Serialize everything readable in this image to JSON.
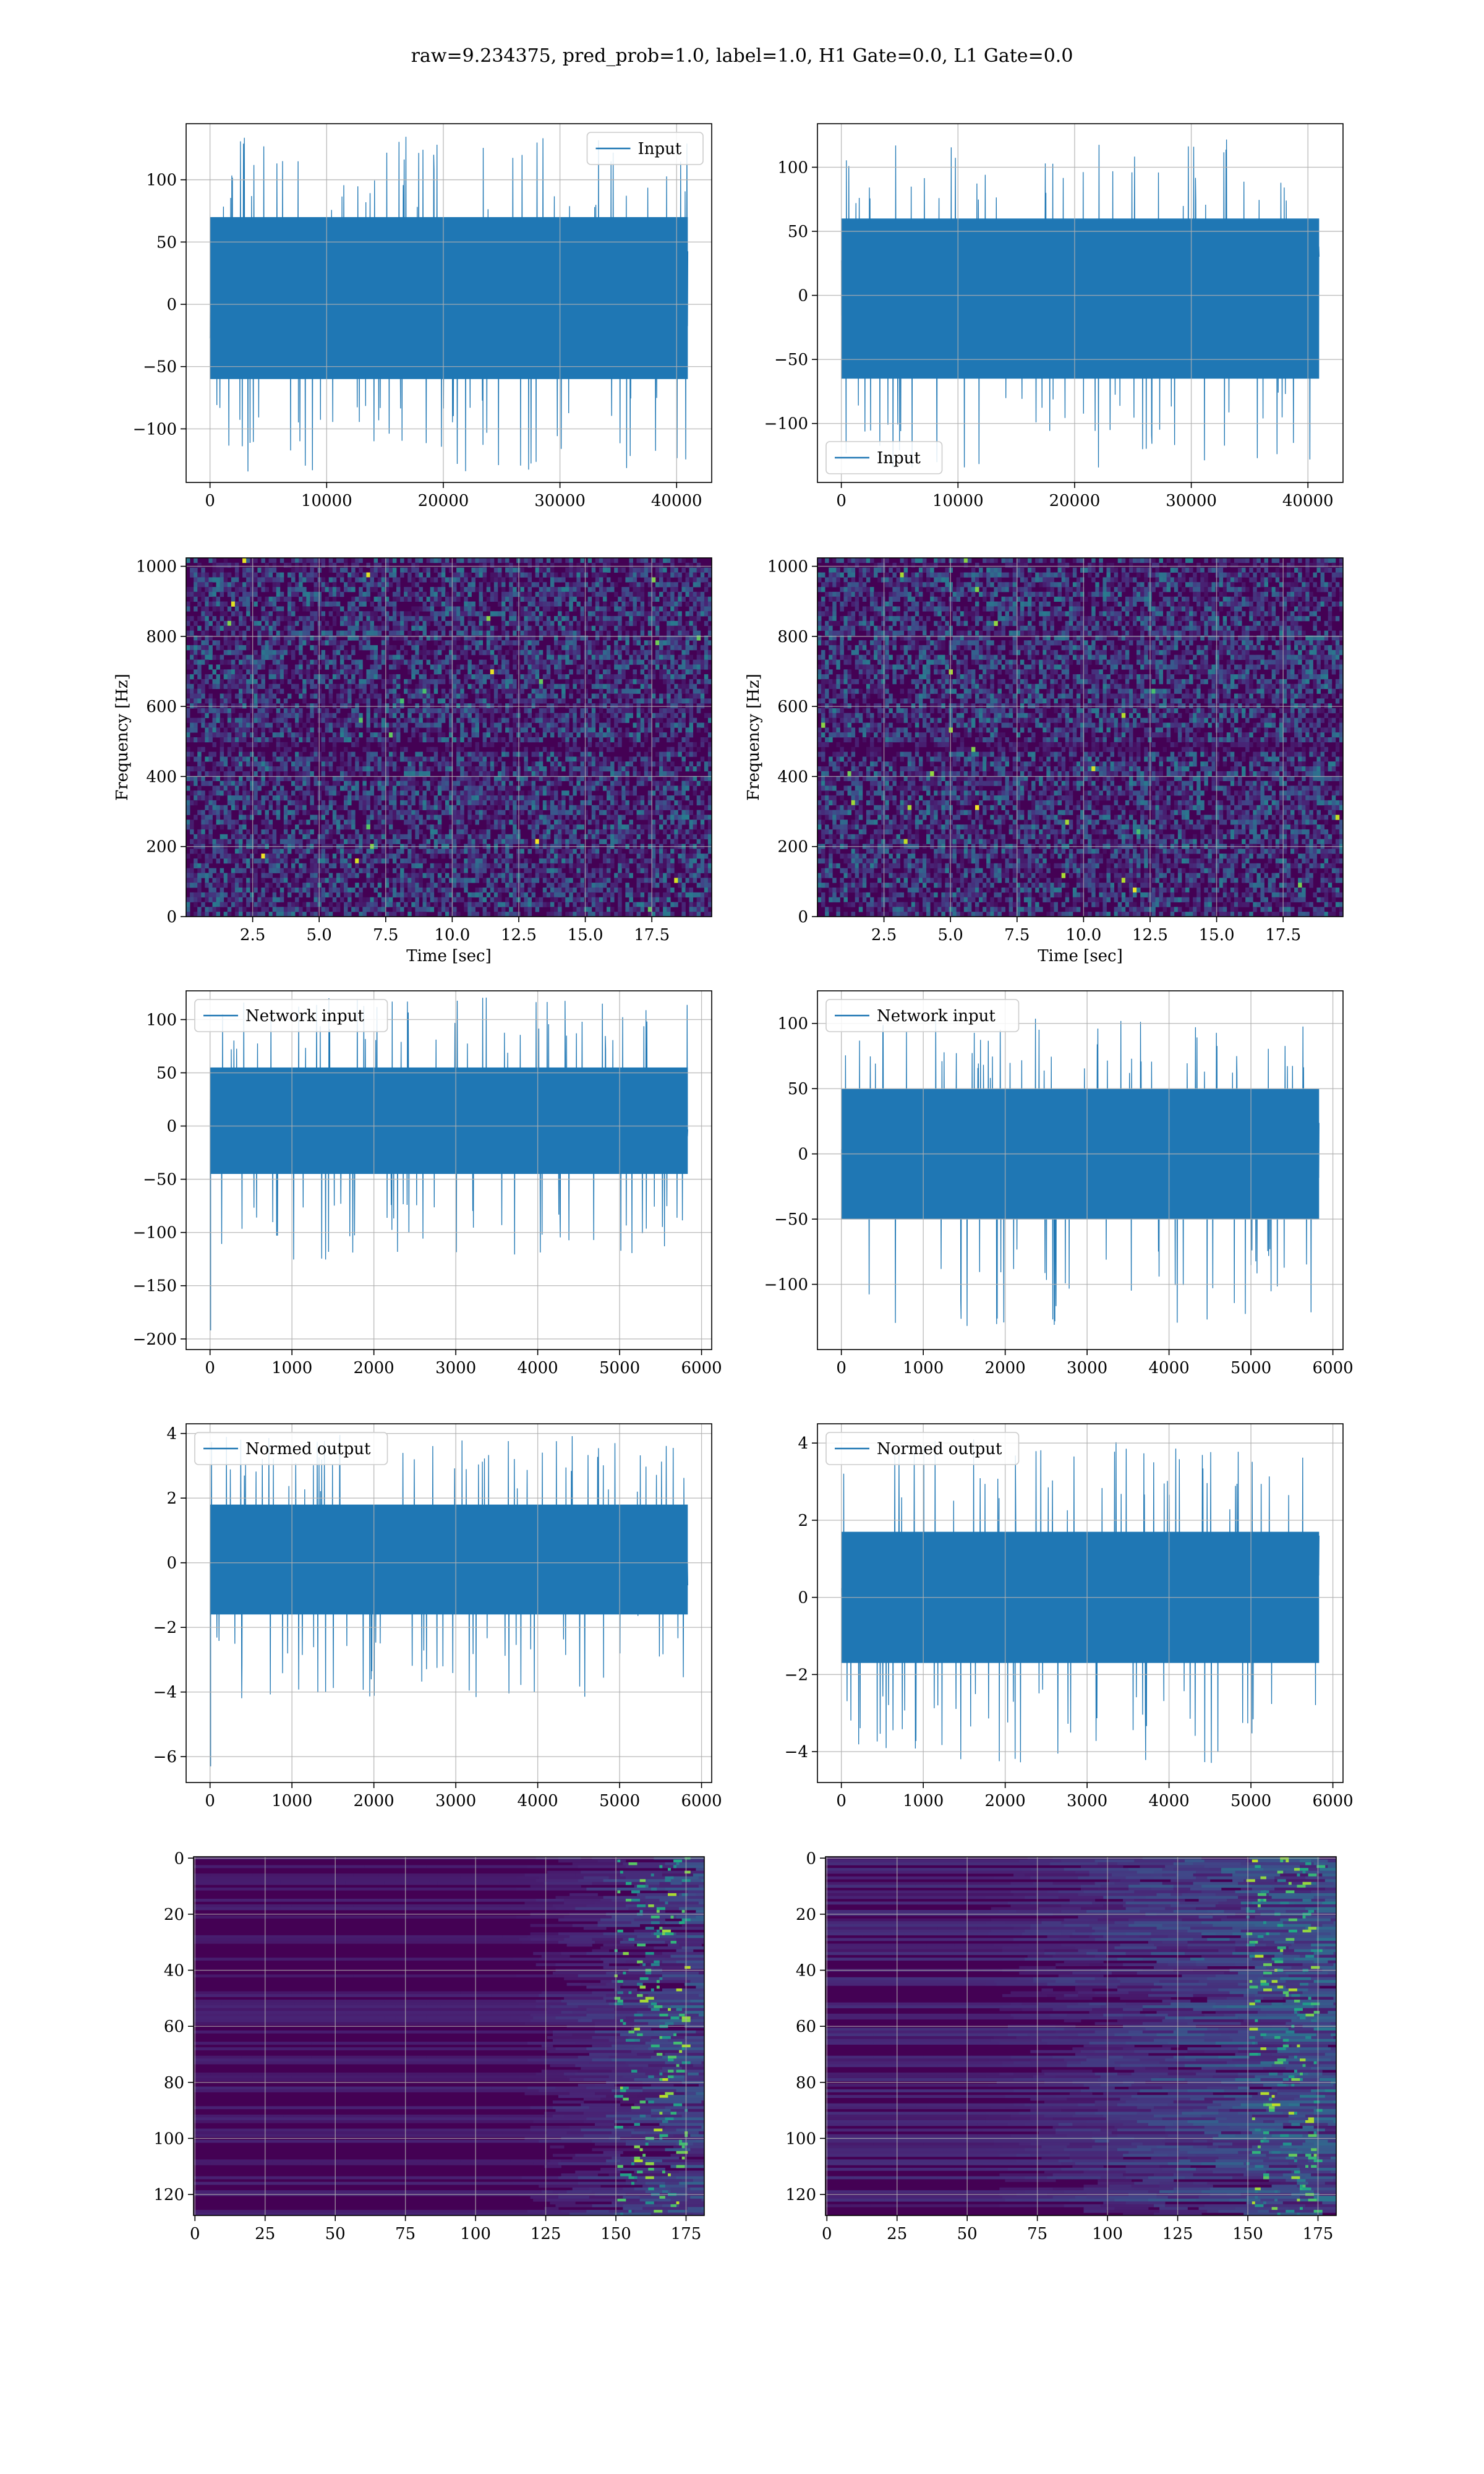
{
  "suptitle": "raw=9.234375, pred_prob=1.0, label=1.0, H1 Gate=0.0, L1 Gate=0.0",
  "colors": {
    "line": "#1f77b4",
    "grid": "#b0b0b0",
    "viridis_low": "#440154",
    "viridis_high": "#fde725"
  },
  "chart_data": [
    {
      "id": "h1-input",
      "type": "line",
      "series": [
        {
          "name": "Input"
        }
      ],
      "legend": "upper right",
      "x_range": [
        0,
        40960
      ],
      "xlim": [
        -2048,
        43008
      ],
      "ylim": [
        -143,
        145
      ],
      "y_envelope": [
        -135,
        137
      ],
      "y_bulk": [
        -60,
        70
      ],
      "xticks": [
        0,
        10000,
        20000,
        30000,
        40000
      ],
      "xtick_labels": [
        "0",
        "10000",
        "20000",
        "30000",
        "40000"
      ],
      "yticks": [
        -100,
        -50,
        0,
        50,
        100
      ],
      "ytick_labels": [
        "−100",
        "−50",
        "0",
        "50",
        "100"
      ],
      "xlabel": "",
      "ylabel": "",
      "grid": true
    },
    {
      "id": "l1-input",
      "type": "line",
      "series": [
        {
          "name": "Input"
        }
      ],
      "legend": "lower left",
      "x_range": [
        0,
        40960
      ],
      "xlim": [
        -2048,
        43008
      ],
      "ylim": [
        -146,
        134
      ],
      "y_envelope": [
        -135,
        122
      ],
      "y_bulk": [
        -65,
        60
      ],
      "xticks": [
        0,
        10000,
        20000,
        30000,
        40000
      ],
      "xtick_labels": [
        "0",
        "10000",
        "20000",
        "30000",
        "40000"
      ],
      "yticks": [
        -100,
        -50,
        0,
        50,
        100
      ],
      "ytick_labels": [
        "−100",
        "−50",
        "0",
        "50",
        "100"
      ],
      "xlabel": "",
      "ylabel": "",
      "grid": true
    },
    {
      "id": "h1-spectrogram",
      "type": "heatmap",
      "colormap": "viridis",
      "xlim": [
        0,
        19.75
      ],
      "ylim": [
        0,
        1024
      ],
      "xticks": [
        2.5,
        5.0,
        7.5,
        10.0,
        12.5,
        15.0,
        17.5
      ],
      "xtick_labels": [
        "2.5",
        "5.0",
        "7.5",
        "10.0",
        "12.5",
        "15.0",
        "17.5"
      ],
      "yticks": [
        0,
        200,
        400,
        600,
        800,
        1000
      ],
      "ytick_labels": [
        "0",
        "200",
        "400",
        "600",
        "800",
        "1000"
      ],
      "xlabel": "Time [sec]",
      "ylabel": "Frequency [Hz]",
      "grid": true
    },
    {
      "id": "l1-spectrogram",
      "type": "heatmap",
      "colormap": "viridis",
      "xlim": [
        0,
        19.75
      ],
      "ylim": [
        0,
        1024
      ],
      "xticks": [
        2.5,
        5.0,
        7.5,
        10.0,
        12.5,
        15.0,
        17.5
      ],
      "xtick_labels": [
        "2.5",
        "5.0",
        "7.5",
        "10.0",
        "12.5",
        "15.0",
        "17.5"
      ],
      "yticks": [
        0,
        200,
        400,
        600,
        800,
        1000
      ],
      "ytick_labels": [
        "0",
        "200",
        "400",
        "600",
        "800",
        "1000"
      ],
      "xlabel": "Time [sec]",
      "ylabel": "Frequency [Hz]",
      "grid": true
    },
    {
      "id": "h1-network-input",
      "type": "line",
      "series": [
        {
          "name": "Network input"
        }
      ],
      "legend": "upper left",
      "x_range": [
        0,
        5832
      ],
      "xlim": [
        -292,
        6124
      ],
      "ylim": [
        -210,
        127
      ],
      "y_envelope": [
        -130,
        122
      ],
      "y_bulk": [
        -45,
        55
      ],
      "spike": [
        5,
        -192
      ],
      "xticks": [
        0,
        1000,
        2000,
        3000,
        4000,
        5000,
        6000
      ],
      "xtick_labels": [
        "0",
        "1000",
        "2000",
        "3000",
        "4000",
        "5000",
        "6000"
      ],
      "yticks": [
        -200,
        -150,
        -100,
        -50,
        0,
        50,
        100
      ],
      "ytick_labels": [
        "−200",
        "−150",
        "−100",
        "−50",
        "0",
        "50",
        "100"
      ],
      "xlabel": "",
      "ylabel": "",
      "grid": true
    },
    {
      "id": "l1-network-input",
      "type": "line",
      "series": [
        {
          "name": "Network input"
        }
      ],
      "legend": "upper left",
      "x_range": [
        0,
        5832
      ],
      "xlim": [
        -292,
        6124
      ],
      "ylim": [
        -150,
        125
      ],
      "y_envelope": [
        -132,
        105
      ],
      "y_bulk": [
        -50,
        50
      ],
      "xticks": [
        0,
        1000,
        2000,
        3000,
        4000,
        5000,
        6000
      ],
      "xtick_labels": [
        "0",
        "1000",
        "2000",
        "3000",
        "4000",
        "5000",
        "6000"
      ],
      "yticks": [
        -100,
        -50,
        0,
        50,
        100
      ],
      "ytick_labels": [
        "−100",
        "−50",
        "0",
        "50",
        "100"
      ],
      "xlabel": "",
      "ylabel": "",
      "grid": true
    },
    {
      "id": "h1-normed-output",
      "type": "line",
      "series": [
        {
          "name": "Normed output"
        }
      ],
      "legend": "upper left",
      "x_range": [
        0,
        5832
      ],
      "xlim": [
        -292,
        6124
      ],
      "ylim": [
        -6.8,
        4.3
      ],
      "y_envelope": [
        -4.2,
        4.0
      ],
      "y_bulk": [
        -1.6,
        1.8
      ],
      "spike": [
        5,
        -6.3
      ],
      "xticks": [
        0,
        1000,
        2000,
        3000,
        4000,
        5000,
        6000
      ],
      "xtick_labels": [
        "0",
        "1000",
        "2000",
        "3000",
        "4000",
        "5000",
        "6000"
      ],
      "yticks": [
        -6,
        -4,
        -2,
        0,
        2,
        4
      ],
      "ytick_labels": [
        "−6",
        "−4",
        "−2",
        "0",
        "2",
        "4"
      ],
      "xlabel": "",
      "ylabel": "",
      "grid": true
    },
    {
      "id": "l1-normed-output",
      "type": "line",
      "series": [
        {
          "name": "Normed output"
        }
      ],
      "legend": "upper left",
      "x_range": [
        0,
        5832
      ],
      "xlim": [
        -292,
        6124
      ],
      "ylim": [
        -4.8,
        4.5
      ],
      "y_envelope": [
        -4.3,
        4.1
      ],
      "y_bulk": [
        -1.7,
        1.7
      ],
      "xticks": [
        0,
        1000,
        2000,
        3000,
        4000,
        5000,
        6000
      ],
      "xtick_labels": [
        "0",
        "1000",
        "2000",
        "3000",
        "4000",
        "5000",
        "6000"
      ],
      "yticks": [
        -4,
        -2,
        0,
        2,
        4
      ],
      "ytick_labels": [
        "−4",
        "−2",
        "0",
        "2",
        "4"
      ],
      "xlabel": "",
      "ylabel": "",
      "grid": true
    },
    {
      "id": "h1-feature-map",
      "type": "heatmap",
      "colormap": "viridis",
      "xlim": [
        -0.5,
        181.5
      ],
      "ylim": [
        127.5,
        -0.5
      ],
      "xticks": [
        0,
        25,
        50,
        75,
        100,
        125,
        150,
        175
      ],
      "xtick_labels": [
        "0",
        "25",
        "50",
        "75",
        "100",
        "125",
        "150",
        "175"
      ],
      "yticks": [
        0,
        20,
        40,
        60,
        80,
        100,
        120
      ],
      "ytick_labels": [
        "0",
        "20",
        "40",
        "60",
        "80",
        "100",
        "120"
      ],
      "xlabel": "",
      "ylabel": "",
      "grid": true
    },
    {
      "id": "l1-feature-map",
      "type": "heatmap",
      "colormap": "viridis",
      "xlim": [
        -0.5,
        181.5
      ],
      "ylim": [
        127.5,
        -0.5
      ],
      "xticks": [
        0,
        25,
        50,
        75,
        100,
        125,
        150,
        175
      ],
      "xtick_labels": [
        "0",
        "25",
        "50",
        "75",
        "100",
        "125",
        "150",
        "175"
      ],
      "yticks": [
        0,
        20,
        40,
        60,
        80,
        100,
        120
      ],
      "ytick_labels": [
        "0",
        "20",
        "40",
        "60",
        "80",
        "100",
        "120"
      ],
      "xlabel": "",
      "ylabel": "",
      "grid": true
    }
  ]
}
